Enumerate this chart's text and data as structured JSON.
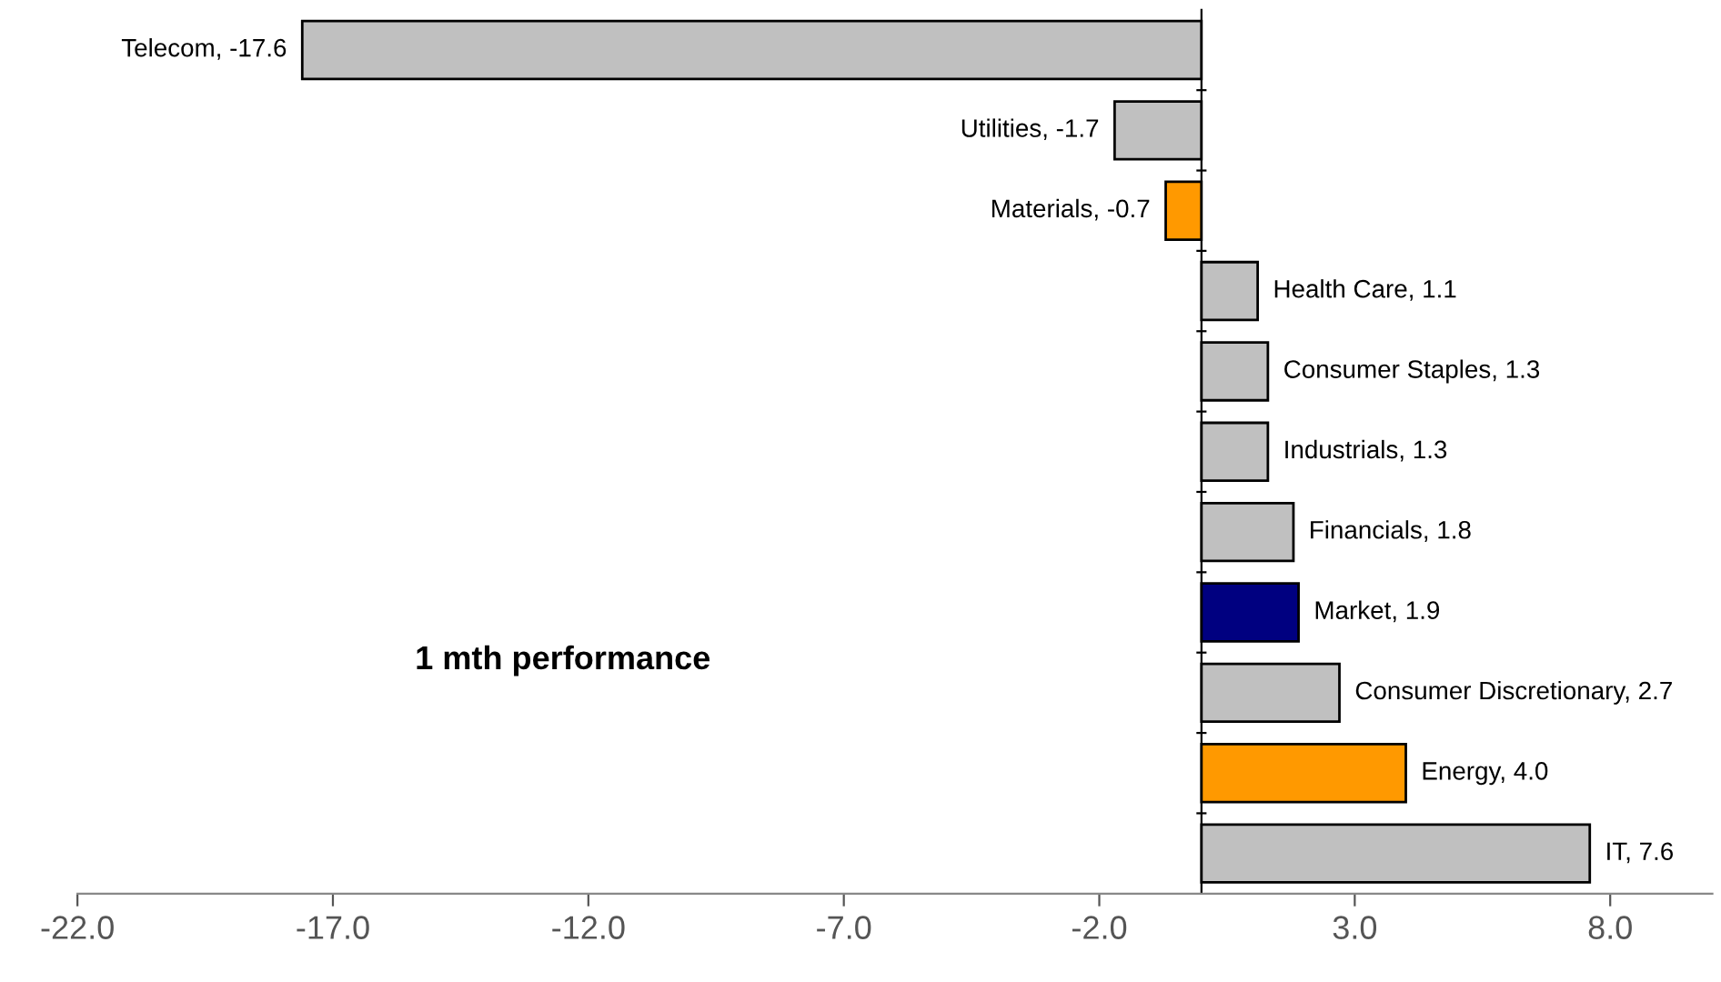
{
  "chart_data": {
    "type": "bar",
    "orientation": "horizontal",
    "title": "1 mth performance",
    "categories": [
      null,
      null,
      null,
      null,
      null,
      null,
      null,
      null,
      null,
      null,
      null
    ],
    "values": [
      -17.6,
      -1.7,
      -0.7,
      1.1,
      1.3,
      1.3,
      1.8,
      1.9,
      2.7,
      4.0,
      7.6
    ],
    "colors": [
      "#c0c0c0",
      "#c0c0c0",
      "#ff9900",
      "#c0c0c0",
      "#c0c0c0",
      "#c0c0c0",
      "#c0c0c0",
      "#000080",
      "#c0c0c0",
      "#ff9900",
      "#c0c0c0"
    ],
    "value_labels": [
      "Telecom, -17.6",
      "Utilities, -1.7",
      "Materials, -0.7",
      "Health Care, 1.1",
      "Consumer Staples, 1.3",
      "Industrials, 1.3",
      "Financials, 1.8",
      "Market, 1.9",
      "Consumer Discretionary, 2.7",
      "Energy, 4.0",
      "IT, 7.6"
    ],
    "xlim": [
      -22,
      10
    ],
    "xticks": [
      {
        "value": -22,
        "label": "-22.0"
      },
      {
        "value": -17,
        "label": "-17.0"
      },
      {
        "value": -12,
        "label": "-12.0"
      },
      {
        "value": -7,
        "label": "-7.0"
      },
      {
        "value": -2,
        "label": "-2.0"
      },
      {
        "value": 3,
        "label": "3.0"
      },
      {
        "value": 8,
        "label": "8.0"
      }
    ],
    "tick_labels": "x",
    "grid": false,
    "legend": false
  }
}
